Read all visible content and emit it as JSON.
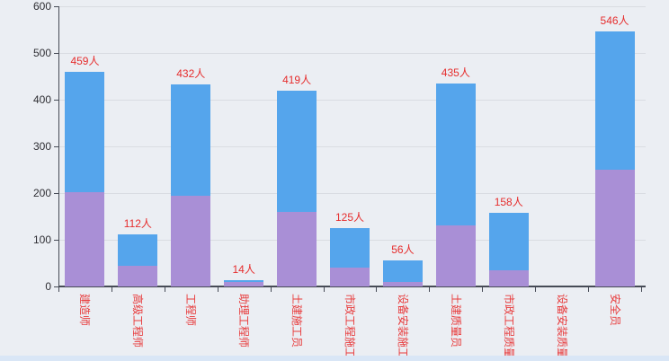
{
  "chart_data": {
    "type": "bar",
    "stacked": true,
    "title": "",
    "categories": [
      "建造师",
      "高级工程师",
      "工程师",
      "助理工程师",
      "土建施工员",
      "市政工程施工",
      "设备安装施工",
      "土建质量员",
      "市政工程质量",
      "设备安装质量",
      "安全员"
    ],
    "series": [
      {
        "name": "lower-purple-segment",
        "color": "#a98fd6",
        "values": [
          202,
          45,
          195,
          9,
          160,
          40,
          10,
          130,
          35,
          0,
          250
        ]
      },
      {
        "name": "upper-blue-segment",
        "color": "#55a5ec",
        "values": [
          257,
          67,
          237,
          5,
          259,
          85,
          46,
          305,
          123,
          0,
          296
        ]
      }
    ],
    "totals": [
      459,
      112,
      432,
      14,
      419,
      125,
      56,
      435,
      158,
      0,
      546
    ],
    "total_label_suffix": "人",
    "total_labels": [
      "459人",
      "112人",
      "432人",
      "14人",
      "419人",
      "125人",
      "56人",
      "435人",
      "158人",
      "",
      "546人"
    ],
    "xlabel": "",
    "ylabel": "",
    "ylim": [
      0,
      600
    ],
    "y_ticks": [
      0,
      100,
      200,
      300,
      400,
      500,
      600
    ],
    "grid": true,
    "legend_position": "none",
    "x_label_rotation_deg": 90
  },
  "colors": {
    "background": "#ebeef3",
    "bottom_strip": "#d9e6f6",
    "gridline": "#d9dce2",
    "axis_line": "#464b56",
    "y_tick_label": "#2e2e33",
    "category_label": "#e8393a",
    "value_label": "#e62d2d"
  }
}
